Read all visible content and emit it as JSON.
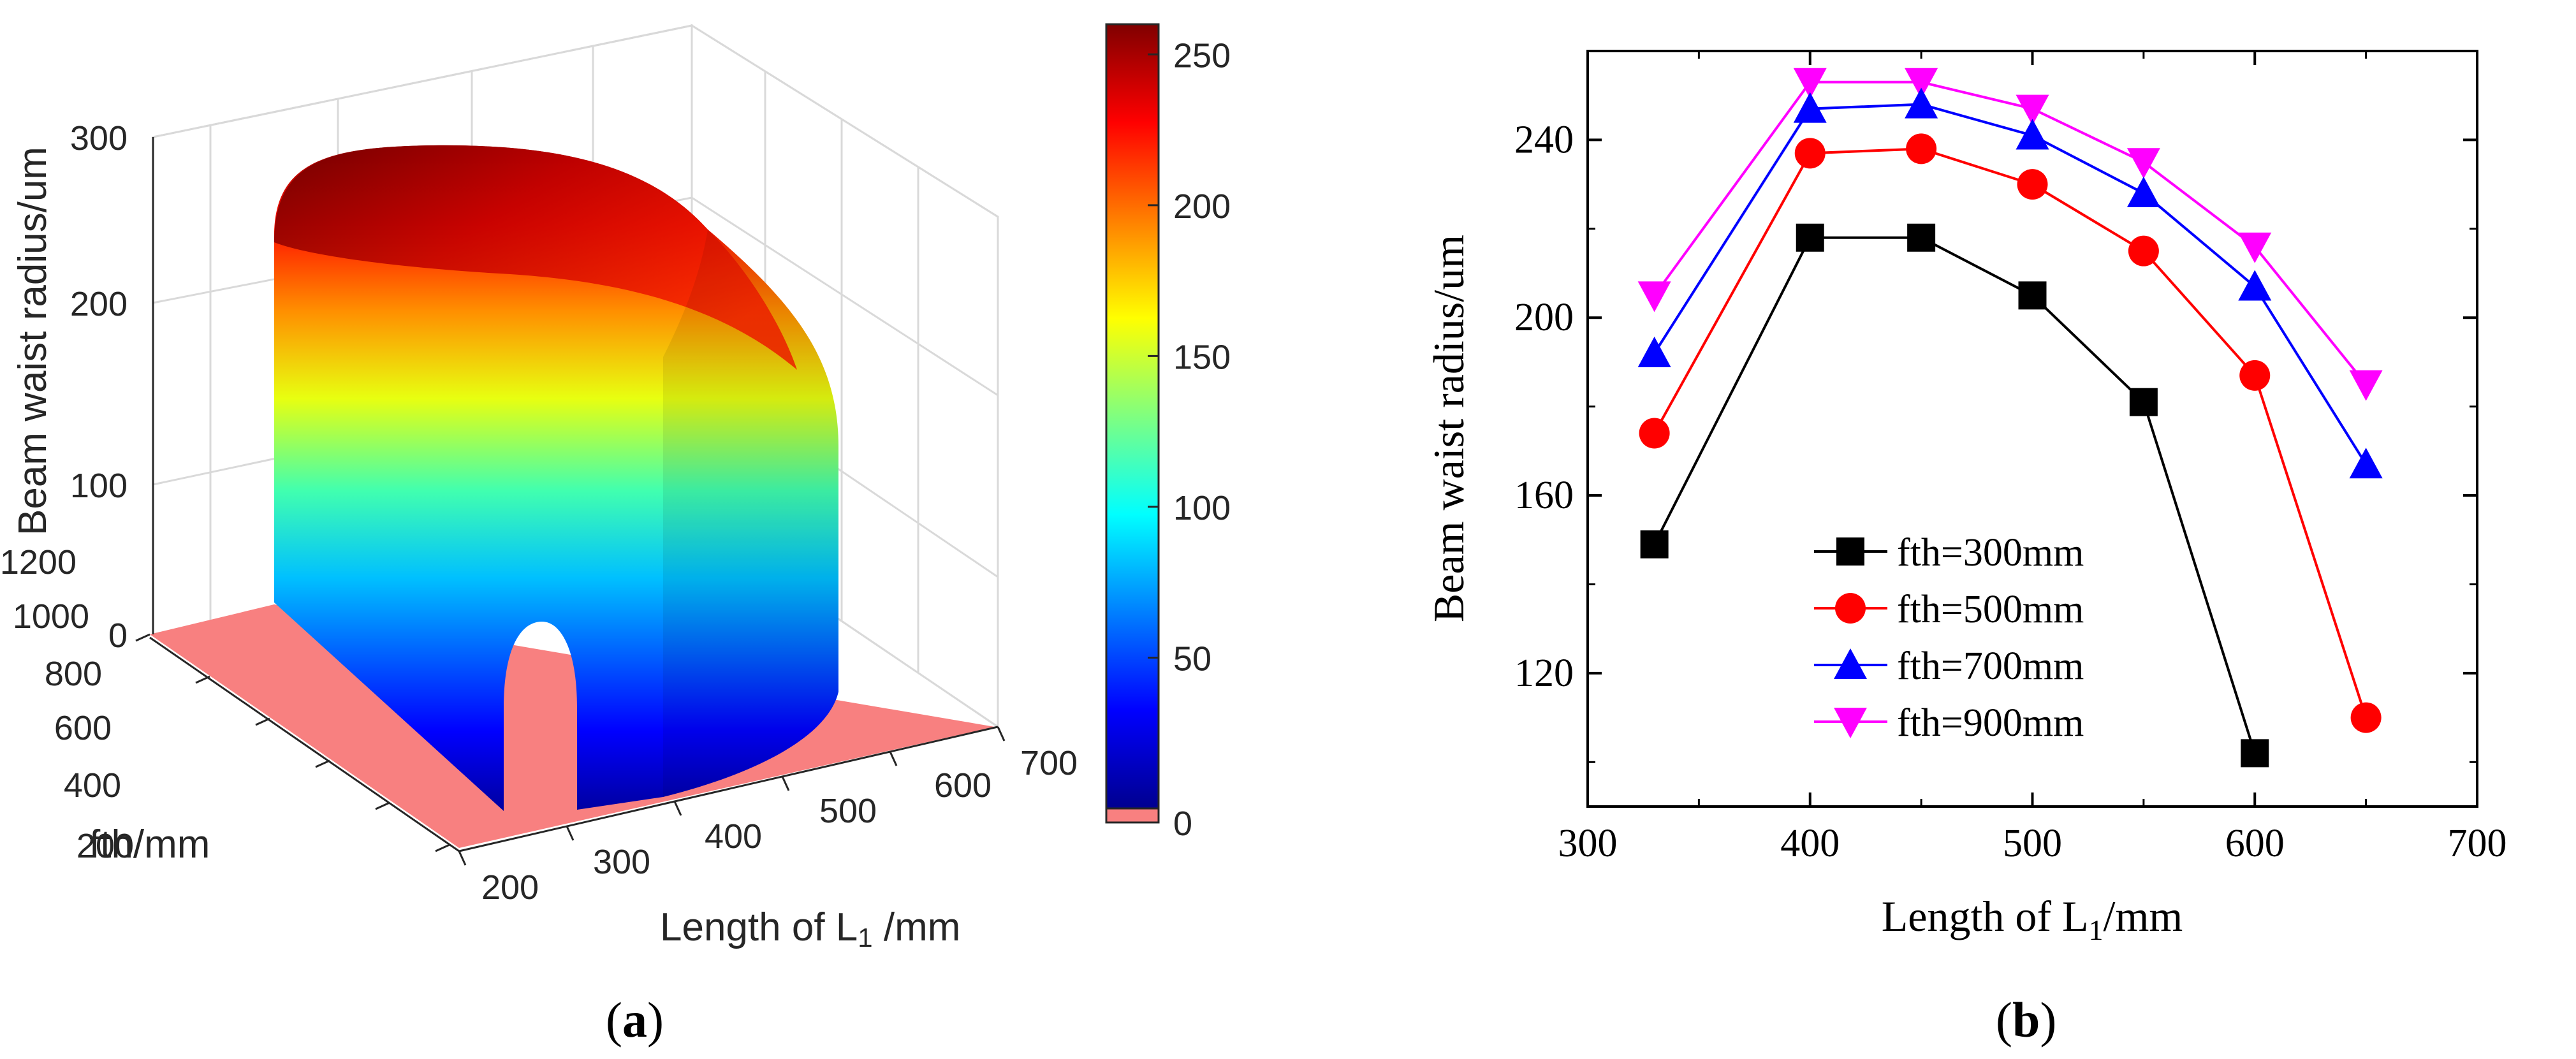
{
  "figure": {
    "caption_a_open": "(",
    "caption_a_letter": "a",
    "caption_a_close": ")",
    "caption_b_open": "(",
    "caption_b_letter": "b",
    "caption_b_close": ")"
  },
  "chart_data": [
    {
      "type": "surface3d",
      "title": "",
      "zlabel": "Beam waist radius/um",
      "ylabel": "fth/mm",
      "xlabel_main": "Length of L",
      "xlabel_sub": "1",
      "xlabel_unit": " /mm",
      "zticks": [
        "0",
        "100",
        "200",
        "300"
      ],
      "yticks": [
        "200",
        "400",
        "600",
        "800",
        "1000",
        "1200"
      ],
      "xticks": [
        "200",
        "300",
        "400",
        "500",
        "600",
        "700"
      ],
      "colorbar": {
        "ticks": [
          "0",
          "50",
          "100",
          "150",
          "200",
          "250"
        ],
        "range": [
          0,
          260
        ],
        "floor_color": "#f88080"
      },
      "surface": {
        "description_free": "",
        "x_range": [
          330,
          650
        ],
        "y_range": [
          200,
          1200
        ],
        "z_max": 255
      }
    },
    {
      "type": "line",
      "xlabel_main": "Length of L",
      "xlabel_sub": "1",
      "xlabel_unit": "/mm",
      "ylabel": "Beam waist radius/um",
      "xlim": [
        300,
        700
      ],
      "ylim": [
        90,
        260
      ],
      "xticks": [
        "300",
        "400",
        "500",
        "600",
        "700"
      ],
      "yticks": [
        "120",
        "160",
        "200",
        "240"
      ],
      "series": [
        {
          "name": "fth=300mm",
          "color": "#000000",
          "marker": "square",
          "x": [
            330,
            400,
            450,
            500,
            550,
            600
          ],
          "y": [
            149,
            218,
            218,
            205,
            181,
            102
          ]
        },
        {
          "name": "fth=500mm",
          "color": "#ff0000",
          "marker": "circle",
          "x": [
            330,
            400,
            450,
            500,
            550,
            600,
            650
          ],
          "y": [
            174,
            237,
            238,
            230,
            215,
            187,
            110
          ]
        },
        {
          "name": "fth=700mm",
          "color": "#0000ff",
          "marker": "triangle-up",
          "x": [
            330,
            400,
            450,
            500,
            550,
            600,
            650
          ],
          "y": [
            192,
            247,
            248,
            241,
            228,
            207,
            167
          ]
        },
        {
          "name": "fth=900mm",
          "color": "#ff00ff",
          "marker": "triangle-down",
          "x": [
            330,
            400,
            450,
            500,
            550,
            600,
            650
          ],
          "y": [
            205,
            253,
            253,
            247,
            235,
            216,
            185
          ]
        }
      ]
    }
  ]
}
